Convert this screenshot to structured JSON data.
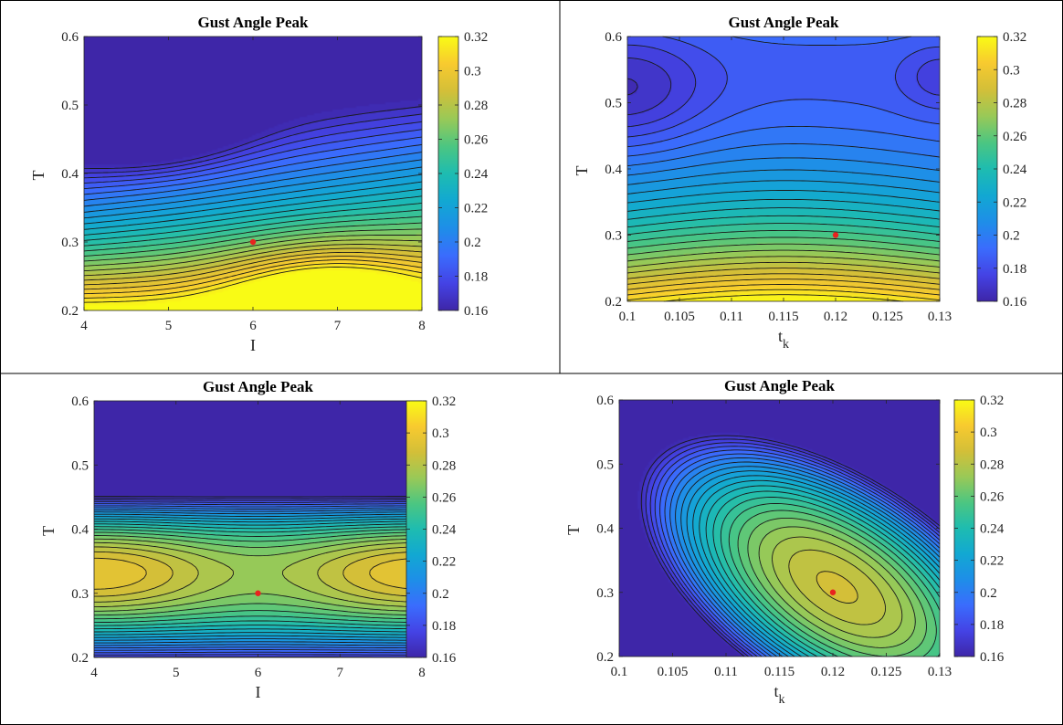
{
  "colormap": [
    "#3e26a8",
    "#4443e5",
    "#3a6cfd",
    "#1e8ee8",
    "#12a8d2",
    "#1ebcb0",
    "#4cc681",
    "#99c957",
    "#d3bf38",
    "#f8ca2f",
    "#f9fb15"
  ],
  "marker_color": "#e8231f",
  "charts": [
    {
      "type": "contour",
      "title": "Gust Angle Peak",
      "xlabel": "I",
      "xlabel_sub": "",
      "ylabel": "T",
      "xlim": [
        4,
        8
      ],
      "ylim": [
        0.2,
        0.6
      ],
      "xticks": [
        4,
        5,
        6,
        7,
        8
      ],
      "xtick_labels": [
        "4",
        "5",
        "6",
        "7",
        "8"
      ],
      "yticks": [
        0.2,
        0.3,
        0.4,
        0.5,
        0.6
      ],
      "ytick_labels": [
        "0.2",
        "0.3",
        "0.4",
        "0.5",
        "0.6"
      ],
      "clim": [
        0.16,
        0.32
      ],
      "colorbar_ticks": [
        0.16,
        0.18,
        0.2,
        0.22,
        0.24,
        0.26,
        0.28,
        0.3,
        0.32
      ],
      "colorbar_labels": [
        "0.16",
        "0.18",
        "0.2",
        "0.22",
        "0.24",
        "0.26",
        "0.28",
        "0.3",
        "0.32"
      ],
      "marker": {
        "x": 6,
        "y": 0.3
      }
    },
    {
      "type": "contour",
      "title": "Gust Angle Peak",
      "xlabel": "t",
      "xlabel_sub": "k",
      "ylabel": "T",
      "xlim": [
        0.1,
        0.13
      ],
      "ylim": [
        0.2,
        0.6
      ],
      "xticks": [
        0.1,
        0.105,
        0.11,
        0.115,
        0.12,
        0.125,
        0.13
      ],
      "xtick_labels": [
        "0.1",
        "0.105",
        "0.11",
        "0.115",
        "0.12",
        "0.125",
        "0.13"
      ],
      "yticks": [
        0.2,
        0.3,
        0.4,
        0.5,
        0.6
      ],
      "ytick_labels": [
        "0.2",
        "0.3",
        "0.4",
        "0.5",
        "0.6"
      ],
      "clim": [
        0.16,
        0.32
      ],
      "colorbar_ticks": [
        0.16,
        0.18,
        0.2,
        0.22,
        0.24,
        0.26,
        0.28,
        0.3,
        0.32
      ],
      "colorbar_labels": [
        "0.16",
        "0.18",
        "0.2",
        "0.22",
        "0.24",
        "0.26",
        "0.28",
        "0.3",
        "0.32"
      ],
      "marker": {
        "x": 0.12,
        "y": 0.3
      }
    },
    {
      "type": "contour",
      "title": "Gust Angle Peak",
      "xlabel": "I",
      "xlabel_sub": "",
      "ylabel": "T",
      "xlim": [
        4,
        8
      ],
      "ylim": [
        0.2,
        0.6
      ],
      "xticks": [
        4,
        5,
        6,
        7,
        8
      ],
      "xtick_labels": [
        "4",
        "5",
        "6",
        "7",
        "8"
      ],
      "yticks": [
        0.2,
        0.3,
        0.4,
        0.5,
        0.6
      ],
      "ytick_labels": [
        "0.2",
        "0.3",
        "0.4",
        "0.5",
        "0.6"
      ],
      "clim": [
        0.16,
        0.32
      ],
      "colorbar_ticks": [
        0.16,
        0.18,
        0.2,
        0.22,
        0.24,
        0.26,
        0.28,
        0.3,
        0.32
      ],
      "colorbar_labels": [
        "0.16",
        "0.18",
        "0.2",
        "0.22",
        "0.24",
        "0.26",
        "0.28",
        "0.3",
        "0.32"
      ],
      "marker": {
        "x": 6,
        "y": 0.3
      }
    },
    {
      "type": "contour",
      "title": "Gust Angle Peak",
      "xlabel": "t",
      "xlabel_sub": "k",
      "ylabel": "T",
      "xlim": [
        0.1,
        0.13
      ],
      "ylim": [
        0.2,
        0.6
      ],
      "xticks": [
        0.1,
        0.105,
        0.11,
        0.115,
        0.12,
        0.125,
        0.13
      ],
      "xtick_labels": [
        "0.1",
        "0.105",
        "0.11",
        "0.115",
        "0.12",
        "0.125",
        "0.13"
      ],
      "yticks": [
        0.2,
        0.3,
        0.4,
        0.5,
        0.6
      ],
      "ytick_labels": [
        "0.2",
        "0.3",
        "0.4",
        "0.5",
        "0.6"
      ],
      "clim": [
        0.16,
        0.32
      ],
      "colorbar_ticks": [
        0.16,
        0.18,
        0.2,
        0.22,
        0.24,
        0.26,
        0.28,
        0.3,
        0.32
      ],
      "colorbar_labels": [
        "0.16",
        "0.18",
        "0.2",
        "0.22",
        "0.24",
        "0.26",
        "0.28",
        "0.3",
        "0.32"
      ],
      "marker": {
        "x": 0.12,
        "y": 0.3
      }
    }
  ]
}
